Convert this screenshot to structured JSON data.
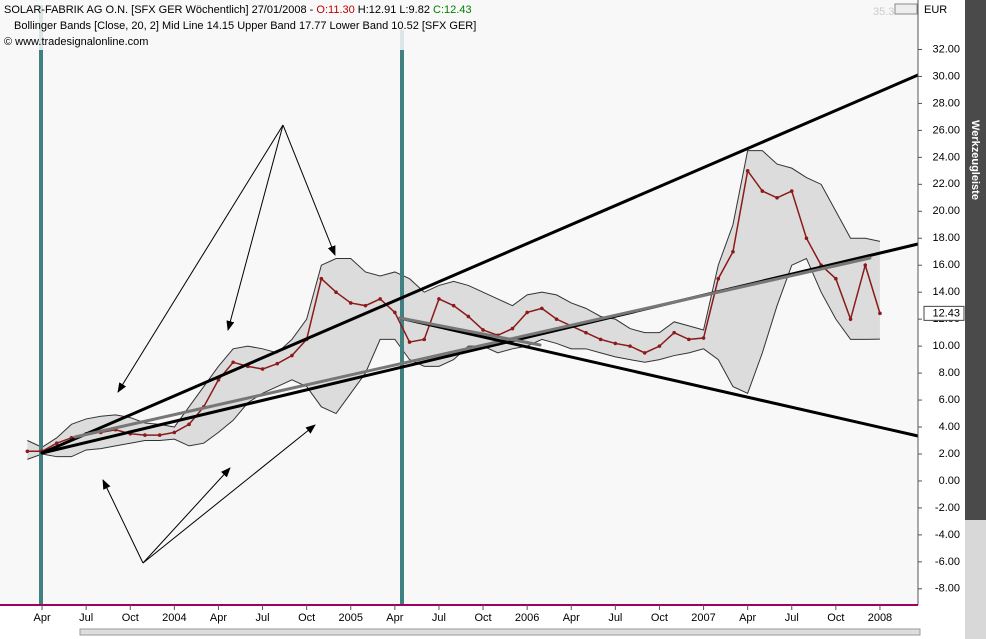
{
  "header": {
    "instrument": "SOLAR-FABRIK AG O.N. [SFX GER  Wöchentlich] 27/01/2008 -",
    "open": "O:11.30",
    "high_low": "H:12.91 L:9.82",
    "close": "C:12.43",
    "indicator": "Bollinger Bands [Close, 20, 2] Mid Line 14.15 Upper Band 17.77 Lower Band 10.52 [SFX GER]",
    "source": "© www.tradesignalonline.com",
    "currency": "EUR",
    "top_value": "35.3",
    "toolbar": "Werkzeugleiste"
  },
  "chart_data": {
    "type": "line",
    "categories": [
      null,
      "Apr",
      null,
      null,
      "Jul",
      null,
      null,
      "Oct",
      null,
      null,
      "2004",
      null,
      null,
      "Apr",
      null,
      null,
      "Jul",
      null,
      null,
      "Oct",
      null,
      null,
      "2005",
      null,
      null,
      "Apr",
      null,
      null,
      "Jul",
      null,
      null,
      "Oct",
      null,
      null,
      "2006",
      null,
      null,
      "Apr",
      null,
      null,
      "Jul",
      null,
      null,
      "Oct",
      null,
      null,
      "2007",
      null,
      null,
      "Apr",
      null,
      null,
      "Jul",
      null,
      null,
      "Oct",
      null,
      null,
      "2008",
      null,
      null
    ],
    "series": [
      {
        "color": "#8b1a1a",
        "values": [
          2.2,
          2.2,
          2.8,
          3.2,
          3.5,
          3.6,
          3.8,
          3.5,
          3.4,
          3.4,
          3.6,
          4.2,
          5.5,
          7.5,
          8.8,
          8.5,
          8.3,
          8.7,
          9.3,
          10.5,
          15.0,
          14.0,
          13.2,
          13.0,
          13.5,
          12.5,
          10.3,
          10.5,
          13.5,
          13.0,
          12.2,
          11.2,
          10.8,
          11.3,
          12.5,
          12.8,
          12.0,
          11.5,
          11.0,
          10.5,
          10.2,
          10.0,
          9.5,
          10.0,
          11.0,
          10.5,
          10.6,
          15.0,
          17.0,
          23.0,
          21.5,
          21.0,
          21.5,
          18.0,
          16.0,
          15.0,
          12.0,
          16.0,
          12.43,
          null,
          null
        ]
      },
      {
        "color": "#333333",
        "values": [
          3.0,
          2.5,
          3.2,
          4.2,
          4.6,
          4.8,
          4.9,
          4.7,
          4.3,
          4.2,
          4.0,
          5.5,
          7.0,
          8.5,
          9.8,
          10.0,
          9.8,
          9.5,
          10.5,
          12.0,
          16.0,
          16.5,
          16.5,
          15.5,
          15.2,
          15.5,
          15.0,
          14.0,
          14.5,
          14.8,
          14.5,
          14.0,
          13.5,
          13.0,
          13.8,
          14.0,
          13.8,
          13.2,
          12.8,
          12.2,
          12.0,
          11.3,
          11.0,
          11.0,
          11.8,
          11.5,
          11.2,
          16.0,
          19.0,
          24.5,
          24.5,
          23.5,
          23.2,
          22.5,
          22.0,
          20.0,
          18.0,
          18.0,
          17.77,
          null,
          null
        ]
      },
      {
        "color": "#333333",
        "values": [
          1.6,
          2.0,
          1.8,
          1.8,
          2.3,
          2.4,
          2.6,
          2.8,
          3.0,
          3.0,
          3.1,
          2.6,
          2.8,
          3.6,
          4.5,
          5.8,
          6.5,
          7.0,
          7.5,
          7.0,
          5.5,
          5.0,
          6.5,
          8.0,
          10.5,
          10.5,
          9.0,
          8.5,
          8.5,
          9.0,
          10.0,
          10.0,
          9.5,
          9.8,
          10.0,
          10.5,
          10.2,
          9.8,
          9.8,
          9.5,
          9.2,
          9.0,
          8.8,
          9.0,
          9.3,
          9.5,
          9.8,
          9.0,
          7.0,
          6.5,
          9.5,
          13.0,
          16.0,
          16.5,
          14.0,
          12.0,
          10.5,
          10.5,
          10.52,
          null,
          null
        ]
      }
    ],
    "band_fill": "#dcdcdc",
    "ylim": [
      -9.2,
      35.3
    ],
    "yticks": [
      {
        "value": -8,
        "label": "-8.00"
      },
      {
        "value": -6,
        "label": "-6.00"
      },
      {
        "value": -4,
        "label": "-4.00"
      },
      {
        "value": -2,
        "label": "-2.00"
      },
      {
        "value": 0,
        "label": "0.00"
      },
      {
        "value": 2,
        "label": "2.00"
      },
      {
        "value": 4,
        "label": "4.00"
      },
      {
        "value": 6,
        "label": "6.00"
      },
      {
        "value": 8,
        "label": "8.00"
      },
      {
        "value": 10,
        "label": "10.00"
      },
      {
        "value": 12,
        "label": "12.00"
      },
      {
        "value": 14,
        "label": "14.00"
      },
      {
        "value": 16,
        "label": "16.00"
      },
      {
        "value": 18,
        "label": "18.00"
      },
      {
        "value": 20,
        "label": "20.00"
      },
      {
        "value": 22,
        "label": "22.00"
      },
      {
        "value": 24,
        "label": "24.00"
      },
      {
        "value": 26,
        "label": "26.00"
      },
      {
        "value": 28,
        "label": "28.00"
      },
      {
        "value": 30,
        "label": "30.00"
      },
      {
        "value": 32,
        "label": "32.00"
      }
    ],
    "grid": false
  }
}
